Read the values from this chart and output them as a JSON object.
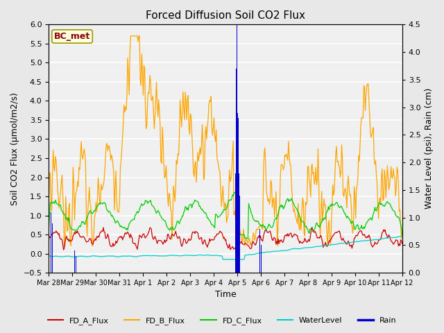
{
  "title": "Forced Diffusion Soil CO2 Flux",
  "xlabel": "Time",
  "ylabel_left": "Soil CO2 Flux (μmol/m2/s)",
  "ylabel_right": "Water Level (psi), Rain (cm)",
  "ylim_left": [
    -0.5,
    6.0
  ],
  "ylim_right": [
    0.0,
    4.5
  ],
  "x_tick_labels": [
    "Mar 28",
    "Mar 29",
    "Mar 30",
    "Mar 31",
    "Apr 1",
    "Apr 2",
    "Apr 3",
    "Apr 4",
    "Apr 5",
    "Apr 6",
    "Apr 7",
    "Apr 8",
    "Apr 9",
    "Apr 10",
    "Apr 11",
    "Apr 12"
  ],
  "annotation_text": "BC_met",
  "annotation_color": "#8B0000",
  "annotation_bg": "#FFFFE0",
  "annotation_edge": "#999900",
  "color_A": "#CC0000",
  "color_B": "#FFA500",
  "color_C": "#00CC00",
  "color_WL": "#00CCCC",
  "color_Rain": "#0000CC",
  "legend_labels": [
    "FD_A_Flux",
    "FD_B_Flux",
    "FD_C_Flux",
    "WaterLevel",
    "Rain"
  ],
  "bg_color": "#E8E8E8",
  "plot_bg": "#F0F0F0",
  "grid_color": "#FFFFFF",
  "title_fontsize": 11,
  "label_fontsize": 9,
  "tick_fontsize": 8,
  "xtick_fontsize": 7,
  "lw": 0.9
}
